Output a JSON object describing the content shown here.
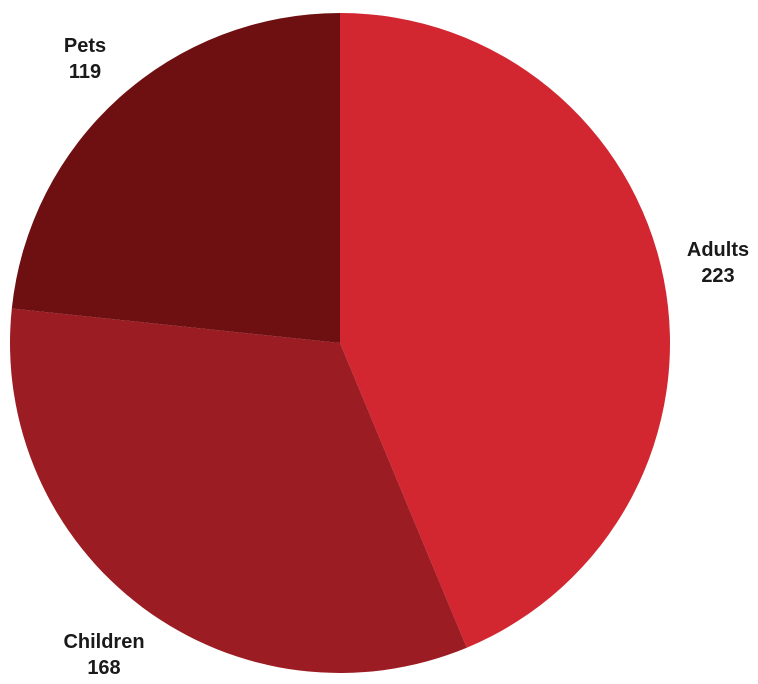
{
  "chart_data": {
    "type": "pie",
    "categories": [
      "Adults",
      "Children",
      "Pets"
    ],
    "values": [
      223,
      168,
      119
    ],
    "colors": [
      "#d22630",
      "#9b1c22",
      "#6e1012"
    ],
    "start_angle_deg": 0,
    "direction": "clockwise",
    "title": "",
    "legend": "none",
    "data_labels": "outside"
  }
}
